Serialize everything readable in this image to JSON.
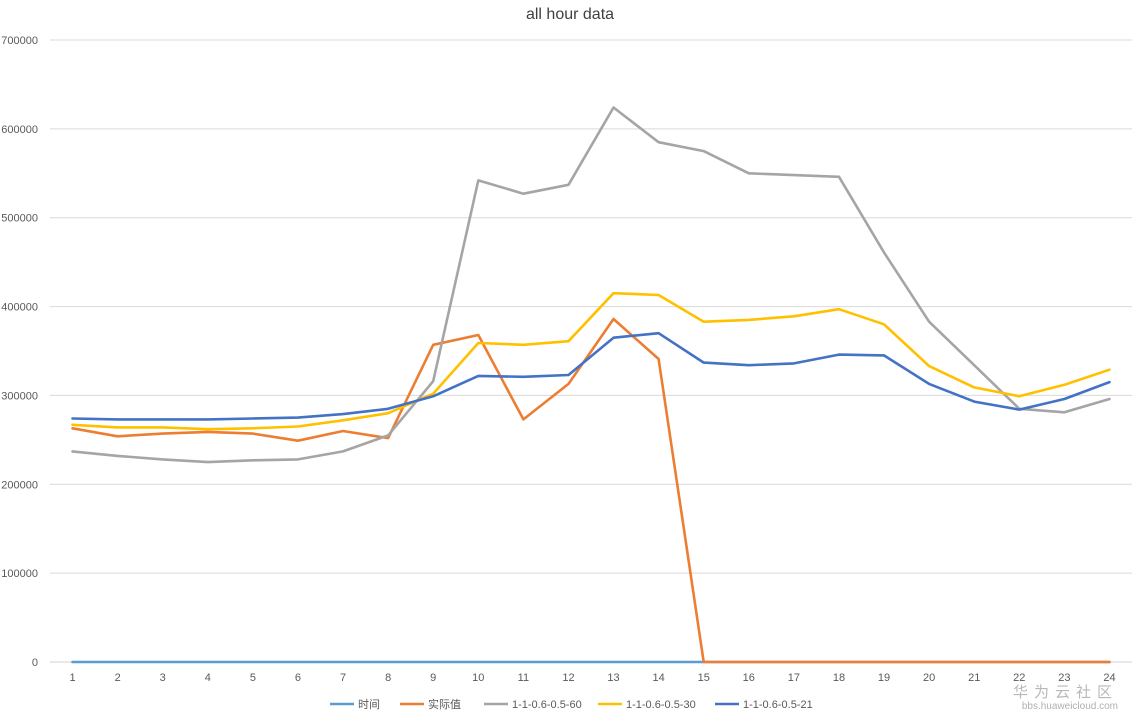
{
  "chart_data": {
    "type": "line",
    "title": "all hour data",
    "xlabel": "",
    "ylabel": "",
    "categories": [
      "1",
      "2",
      "3",
      "4",
      "5",
      "6",
      "7",
      "8",
      "9",
      "10",
      "11",
      "12",
      "13",
      "14",
      "15",
      "16",
      "17",
      "18",
      "19",
      "20",
      "21",
      "22",
      "23",
      "24"
    ],
    "ylim": [
      0,
      700000
    ],
    "yticks": [
      "0",
      "100000",
      "200000",
      "300000",
      "400000",
      "500000",
      "600000",
      "700000"
    ],
    "grid": "horizontal",
    "legend_position": "bottom",
    "series": [
      {
        "name": "时间",
        "color": "#5B9BD5",
        "values": [
          0,
          0,
          0,
          0,
          0,
          0,
          0,
          0,
          0,
          0,
          0,
          0,
          0,
          0,
          0,
          0,
          0,
          0,
          0,
          0,
          0,
          0,
          0,
          0
        ]
      },
      {
        "name": "实际值",
        "color": "#ED7D31",
        "values": [
          263000,
          254000,
          257000,
          259000,
          257000,
          249000,
          260000,
          252000,
          357000,
          368000,
          273000,
          313000,
          386000,
          341000,
          0,
          0,
          0,
          0,
          0,
          0,
          0,
          0,
          0,
          0
        ]
      },
      {
        "name": "1-1-0.6-0.5-60",
        "color": "#A5A5A5",
        "values": [
          237000,
          232000,
          228000,
          225000,
          227000,
          228000,
          237000,
          255000,
          316000,
          542000,
          527000,
          537000,
          624000,
          585000,
          575000,
          550000,
          548000,
          546000,
          461000,
          383000,
          334000,
          285000,
          281000,
          296000
        ]
      },
      {
        "name": "1-1-0.6-0.5-30",
        "color": "#FFC000",
        "values": [
          267000,
          264000,
          264000,
          262000,
          263000,
          265000,
          272000,
          280000,
          302000,
          359000,
          357000,
          361000,
          415000,
          413000,
          383000,
          385000,
          389000,
          397000,
          380000,
          333000,
          309000,
          299000,
          312000,
          329000
        ]
      },
      {
        "name": "1-1-0.6-0.5-21",
        "color": "#4472C4",
        "values": [
          274000,
          273000,
          273000,
          273000,
          274000,
          275000,
          279000,
          285000,
          299000,
          322000,
          321000,
          323000,
          365000,
          370000,
          337000,
          334000,
          336000,
          346000,
          345000,
          313000,
          293000,
          284000,
          296000,
          315000
        ]
      }
    ]
  },
  "watermark": {
    "brand": "华为云社区",
    "url": "bbs.huaweicloud.com"
  }
}
